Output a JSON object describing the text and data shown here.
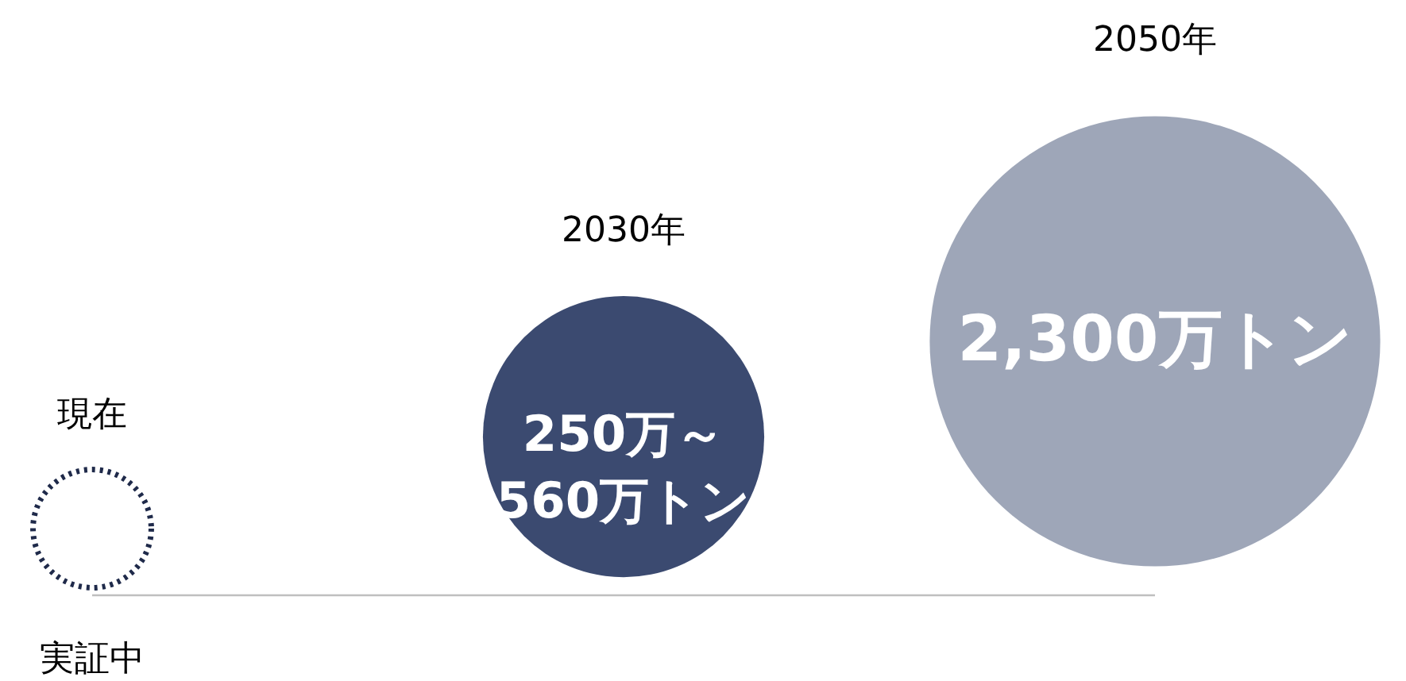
{
  "chart_data": {
    "type": "other",
    "categories": [
      "現在",
      "2030年",
      "2050年"
    ],
    "values": [
      null,
      560,
      2300
    ],
    "value_labels": [
      "実証中",
      "250万～560万トン",
      "2,300万トン"
    ],
    "colors": [
      "#1f2a4a",
      "#3b4a70",
      "#9ea6b8"
    ]
  }
}
